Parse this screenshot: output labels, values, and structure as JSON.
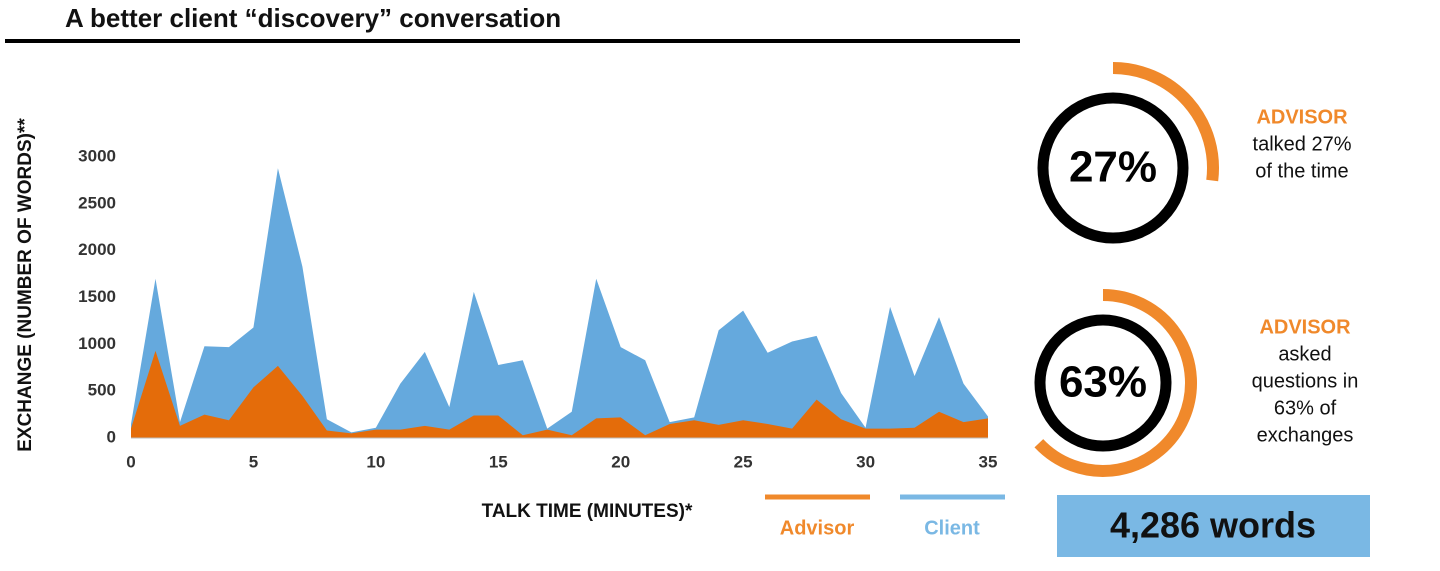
{
  "chart_data": {
    "type": "area",
    "title": "A better client “discovery” conversation",
    "xlabel": "TALK TIME (MINUTES)*",
    "ylabel": "EXCHANGE (NUMBER OF WORDS)**",
    "x": [
      0,
      1,
      2,
      3,
      4,
      5,
      6,
      7,
      8,
      9,
      10,
      11,
      12,
      13,
      14,
      15,
      16,
      17,
      18,
      19,
      20,
      21,
      22,
      23,
      24,
      25,
      26,
      27,
      28,
      29,
      30,
      31,
      32,
      33,
      34,
      35
    ],
    "series": [
      {
        "name": "Advisor",
        "color": "#e46c0a",
        "legend_color": "#f0892b",
        "values": [
          100,
          930,
          130,
          250,
          190,
          540,
          770,
          450,
          80,
          50,
          90,
          90,
          130,
          90,
          240,
          240,
          30,
          90,
          30,
          210,
          220,
          30,
          150,
          190,
          140,
          190,
          150,
          100,
          410,
          200,
          100,
          100,
          110,
          280,
          170,
          210
        ]
      },
      {
        "name": "Client",
        "color": "#65a9dd",
        "legend_color": "#7ab8e4",
        "values": [
          150,
          1700,
          170,
          980,
          970,
          1180,
          2880,
          1830,
          200,
          60,
          110,
          580,
          920,
          330,
          1560,
          780,
          830,
          100,
          280,
          1700,
          970,
          830,
          170,
          220,
          1150,
          1360,
          910,
          1030,
          1090,
          480,
          110,
          1400,
          660,
          1290,
          580,
          230
        ]
      }
    ],
    "xlim": [
      0,
      35
    ],
    "xticks": [
      0,
      5,
      10,
      15,
      20,
      25,
      30,
      35
    ],
    "ylim": [
      0,
      3000
    ],
    "yticks": [
      0,
      500,
      1000,
      1500,
      2000,
      2500,
      3000
    ]
  },
  "stats": [
    {
      "value": 27,
      "value_label": "27%",
      "heading": "ADVISOR",
      "lines": [
        "talked 27%",
        "of the time"
      ]
    },
    {
      "value": 63,
      "value_label": "63%",
      "heading": "ADVISOR",
      "lines": [
        "asked",
        "questions in",
        "63% of",
        "exchanges"
      ]
    }
  ],
  "total": "4,286 words"
}
